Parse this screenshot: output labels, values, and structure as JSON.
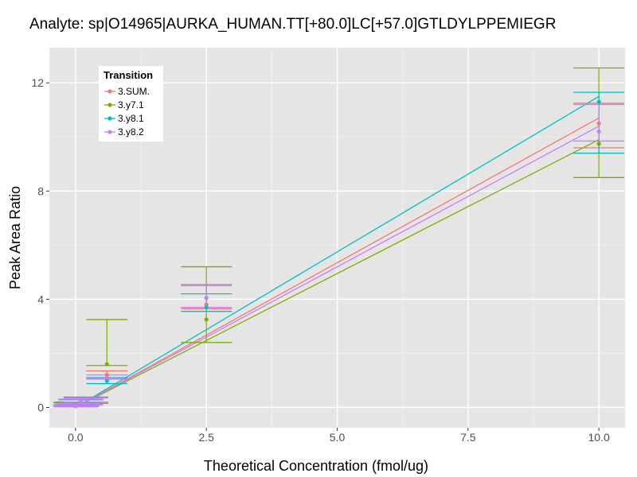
{
  "chart_data": {
    "type": "scatter",
    "title": "Analyte: sp|O14965|AURKA_HUMAN.TT[+80.0]LC[+57.0]GTLDYLPPEMIEGR",
    "xlabel": "Theoretical Concentration (fmol/ug)",
    "ylabel": "Peak Area Ratio",
    "xlim": [
      -0.5,
      10.5
    ],
    "ylim": [
      -0.75,
      13.3
    ],
    "x_ticks": [
      0.0,
      2.5,
      5.0,
      7.5,
      10.0
    ],
    "x_tick_labels": [
      "0.0",
      "2.5",
      "5.0",
      "7.5",
      "10.0"
    ],
    "y_ticks": [
      0,
      4,
      8,
      12
    ],
    "y_tick_labels": [
      "0",
      "4",
      "8",
      "12"
    ],
    "grid": true,
    "legend": {
      "title": "Transition",
      "placement": "top-left"
    },
    "series": [
      {
        "name": "3.SUM.",
        "color": "#F8766D",
        "points": [
          {
            "x": 0.0,
            "y": 0.05,
            "ymin": 0.02,
            "ymax": 0.08
          },
          {
            "x": 0.025,
            "y": 0.1,
            "ymin": 0.05,
            "ymax": 0.15
          },
          {
            "x": 0.1,
            "y": 0.2,
            "ymin": 0.15,
            "ymax": 0.28
          },
          {
            "x": 0.2,
            "y": 0.3,
            "ymin": 0.2,
            "ymax": 0.35
          },
          {
            "x": 0.6,
            "y": 1.2,
            "ymin": 1.05,
            "ymax": 1.35
          },
          {
            "x": 2.5,
            "y": 3.8,
            "ymin": 3.65,
            "ymax": 4.5
          },
          {
            "x": 10.0,
            "y": 10.5,
            "ymin": 9.6,
            "ymax": 11.25
          }
        ],
        "fit": {
          "intercept": 0.0,
          "slope": 1.07
        }
      },
      {
        "name": "3.y7.1",
        "color": "#7CAE00",
        "points": [
          {
            "x": 0.0,
            "y": 0.08,
            "ymin": 0.02,
            "ymax": 0.18
          },
          {
            "x": 0.025,
            "y": 0.12,
            "ymin": 0.04,
            "ymax": 0.2
          },
          {
            "x": 0.1,
            "y": 0.2,
            "ymin": 0.1,
            "ymax": 0.3
          },
          {
            "x": 0.2,
            "y": 0.3,
            "ymin": 0.15,
            "ymax": 0.38
          },
          {
            "x": 0.6,
            "y": 1.6,
            "ymin": 1.55,
            "ymax": 3.25
          },
          {
            "x": 2.5,
            "y": 3.25,
            "ymin": 2.4,
            "ymax": 5.2
          },
          {
            "x": 10.0,
            "y": 9.75,
            "ymin": 8.5,
            "ymax": 12.55
          }
        ],
        "fit": {
          "intercept": 0.0,
          "slope": 0.99
        }
      },
      {
        "name": "3.y8.1",
        "color": "#00BFC4",
        "points": [
          {
            "x": 0.0,
            "y": 0.05,
            "ymin": 0.02,
            "ymax": 0.1
          },
          {
            "x": 0.025,
            "y": 0.1,
            "ymin": 0.05,
            "ymax": 0.15
          },
          {
            "x": 0.1,
            "y": 0.2,
            "ymin": 0.12,
            "ymax": 0.3
          },
          {
            "x": 0.2,
            "y": 0.3,
            "ymin": 0.2,
            "ymax": 0.38
          },
          {
            "x": 0.6,
            "y": 0.98,
            "ymin": 0.88,
            "ymax": 1.1
          },
          {
            "x": 2.5,
            "y": 3.7,
            "ymin": 3.55,
            "ymax": 4.2
          },
          {
            "x": 10.0,
            "y": 11.3,
            "ymin": 9.4,
            "ymax": 11.65
          }
        ],
        "fit": {
          "intercept": 0.0,
          "slope": 1.15
        }
      },
      {
        "name": "3.y8.2",
        "color": "#C77CFF",
        "points": [
          {
            "x": 0.0,
            "y": 0.05,
            "ymin": 0.02,
            "ymax": 0.1
          },
          {
            "x": 0.025,
            "y": 0.1,
            "ymin": 0.05,
            "ymax": 0.15
          },
          {
            "x": 0.1,
            "y": 0.2,
            "ymin": 0.12,
            "ymax": 0.28
          },
          {
            "x": 0.2,
            "y": 0.3,
            "ymin": 0.2,
            "ymax": 0.36
          },
          {
            "x": 0.6,
            "y": 1.1,
            "ymin": 1.05,
            "ymax": 1.2
          },
          {
            "x": 2.5,
            "y": 4.05,
            "ymin": 3.7,
            "ymax": 4.55
          },
          {
            "x": 10.0,
            "y": 10.2,
            "ymin": 9.85,
            "ymax": 11.2
          }
        ],
        "fit": {
          "intercept": 0.0,
          "slope": 1.04
        }
      }
    ]
  }
}
